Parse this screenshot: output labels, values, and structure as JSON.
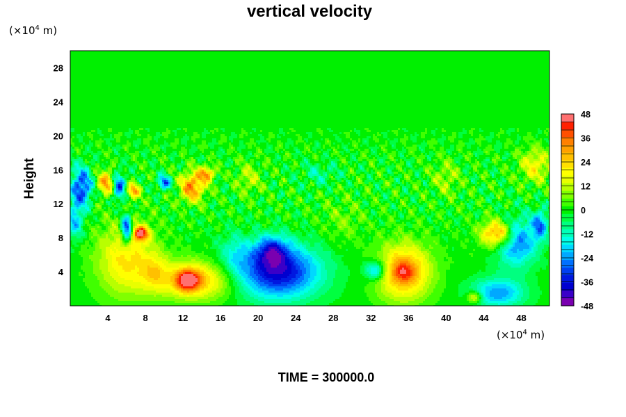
{
  "chart_data": {
    "type": "heatmap",
    "title": "vertical velocity",
    "ylabel": "Height",
    "y_unit": {
      "prefix": "(×10",
      "exponent": "4",
      "suffix": " m)"
    },
    "x_unit": {
      "prefix": "(×10",
      "exponent": "4",
      "suffix": " m)"
    },
    "xlim": [
      0,
      51
    ],
    "ylim": [
      0,
      30
    ],
    "x_ticks": [
      4,
      8,
      12,
      16,
      20,
      24,
      28,
      32,
      36,
      40,
      44,
      48
    ],
    "y_ticks": [
      4,
      8,
      12,
      16,
      20,
      24,
      28
    ],
    "colorbar": {
      "min": -48,
      "max": 48,
      "step": 4,
      "labels": [
        48,
        36,
        24,
        12,
        0,
        -12,
        -24,
        -36,
        -48
      ],
      "colors": [
        "#7a00b0",
        "#3a00c8",
        "#0000d0",
        "#0018e0",
        "#0040f0",
        "#0070ff",
        "#00a8ff",
        "#00d8ff",
        "#00ffe8",
        "#00ffb8",
        "#00ff80",
        "#00ff40",
        "#00f000",
        "#40ff00",
        "#80ff00",
        "#b8ff00",
        "#e8ff00",
        "#ffff00",
        "#ffe000",
        "#ffc000",
        "#ffa000",
        "#ff8000",
        "#ff5000",
        "#ff2000",
        "#ff7070"
      ]
    },
    "features": [
      {
        "x": 6.0,
        "y": 5.5,
        "sx": 2.2,
        "sy": 3.0,
        "value": 22
      },
      {
        "x": 7.5,
        "y": 8.5,
        "sx": 0.6,
        "sy": 0.6,
        "value": 40
      },
      {
        "x": 6.0,
        "y": 9.0,
        "sx": 0.4,
        "sy": 1.2,
        "value": -40
      },
      {
        "x": 13.5,
        "y": 3.0,
        "sx": 3.0,
        "sy": 1.6,
        "value": 26
      },
      {
        "x": 12.5,
        "y": 3.0,
        "sx": 0.9,
        "sy": 0.9,
        "value": 34
      },
      {
        "x": 22.0,
        "y": 4.0,
        "sx": 3.2,
        "sy": 2.2,
        "value": -40
      },
      {
        "x": 21.5,
        "y": 6.5,
        "sx": 1.2,
        "sy": 1.2,
        "value": -24
      },
      {
        "x": 35.5,
        "y": 4.0,
        "sx": 2.0,
        "sy": 2.3,
        "value": 32
      },
      {
        "x": 35.5,
        "y": 4.0,
        "sx": 0.8,
        "sy": 0.8,
        "value": 14
      },
      {
        "x": 45.5,
        "y": 8.5,
        "sx": 1.2,
        "sy": 1.1,
        "value": 36
      },
      {
        "x": 47.5,
        "y": 7.5,
        "sx": 1.5,
        "sy": 2.0,
        "value": -28
      },
      {
        "x": 45.5,
        "y": 1.5,
        "sx": 2.0,
        "sy": 1.2,
        "value": -24
      },
      {
        "x": 32.5,
        "y": 4.2,
        "sx": 0.8,
        "sy": 0.8,
        "value": -26
      },
      {
        "x": 43.0,
        "y": 1.0,
        "sx": 0.6,
        "sy": 0.5,
        "value": 22
      },
      {
        "x": 13.0,
        "y": 14.0,
        "sx": 0.9,
        "sy": 1.2,
        "value": 34
      },
      {
        "x": 14.5,
        "y": 15.5,
        "sx": 0.6,
        "sy": 0.6,
        "value": 30
      },
      {
        "x": 1.2,
        "y": 14.0,
        "sx": 0.8,
        "sy": 1.6,
        "value": -32
      },
      {
        "x": 3.8,
        "y": 14.5,
        "sx": 0.6,
        "sy": 1.0,
        "value": 30
      },
      {
        "x": 5.2,
        "y": 14.0,
        "sx": 0.5,
        "sy": 1.2,
        "value": -28
      },
      {
        "x": 6.7,
        "y": 13.5,
        "sx": 0.5,
        "sy": 0.6,
        "value": 30
      },
      {
        "x": 10.0,
        "y": 14.5,
        "sx": 0.5,
        "sy": 0.6,
        "value": -28
      },
      {
        "x": 19.0,
        "y": 15.0,
        "sx": 0.9,
        "sy": 1.2,
        "value": 12
      },
      {
        "x": 50.0,
        "y": 9.5,
        "sx": 0.6,
        "sy": 1.2,
        "value": -24
      },
      {
        "x": 49.5,
        "y": 16.5,
        "sx": 1.2,
        "sy": 1.4,
        "value": 18
      },
      {
        "x": 40.0,
        "y": 15.0,
        "sx": 1.0,
        "sy": 1.5,
        "value": 10
      },
      {
        "x": 29.0,
        "y": 10.0,
        "sx": 1.5,
        "sy": 2.0,
        "value": 6
      },
      {
        "x": 0.5,
        "y": 10.0,
        "sx": 0.6,
        "sy": 1.5,
        "value": -20
      },
      {
        "x": 26.5,
        "y": 15.5,
        "sx": 1.5,
        "sy": 1.0,
        "value": -8
      },
      {
        "x": 9.0,
        "y": 4.0,
        "sx": 1.0,
        "sy": 1.5,
        "value": 12
      },
      {
        "x": 17.5,
        "y": 6.0,
        "sx": 1.2,
        "sy": 1.8,
        "value": -10
      }
    ]
  },
  "footer": {
    "time_label": "TIME = 300000.0"
  }
}
